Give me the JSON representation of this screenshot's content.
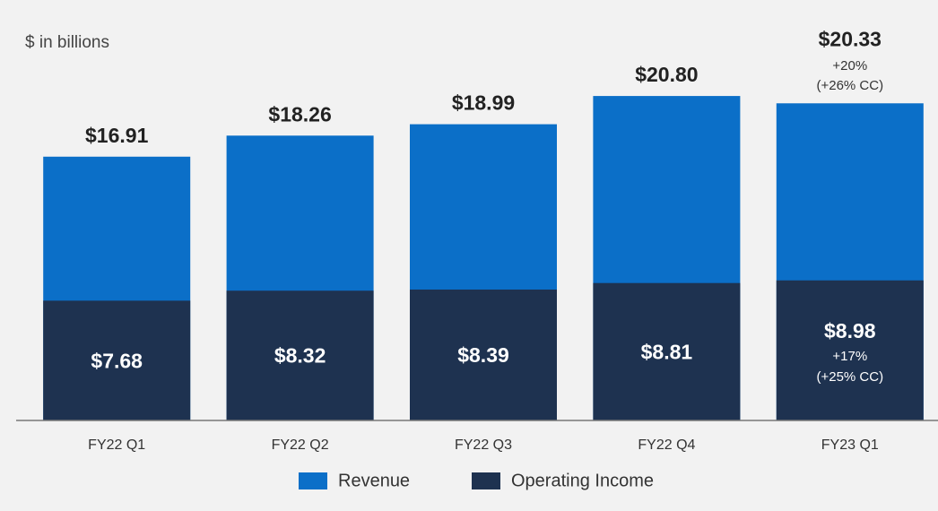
{
  "chart_data": {
    "type": "overlap_bar",
    "subtitle": "$ in billions",
    "categories": [
      "FY22 Q1",
      "FY22 Q2",
      "FY22 Q3",
      "FY22 Q4",
      "FY23 Q1"
    ],
    "series": [
      {
        "name": "Revenue",
        "color": "#0b6fc8",
        "values": [
          16.91,
          18.26,
          18.99,
          20.8,
          20.33
        ],
        "value_labels": [
          "$16.91",
          "$18.26",
          "$18.99",
          "$20.80",
          "$20.33"
        ],
        "growth_labels": [
          null,
          null,
          null,
          null,
          "+20%"
        ],
        "cc_growth_labels": [
          null,
          null,
          null,
          null,
          "(+26% CC)"
        ]
      },
      {
        "name": "Operating Income",
        "color": "#1e3250",
        "values": [
          7.68,
          8.32,
          8.39,
          8.81,
          8.98
        ],
        "value_labels": [
          "$7.68",
          "$8.32",
          "$8.39",
          "$8.81",
          "$8.98"
        ],
        "growth_labels": [
          null,
          null,
          null,
          null,
          "+17%"
        ],
        "cc_growth_labels": [
          null,
          null,
          null,
          null,
          "(+25% CC)"
        ]
      }
    ]
  }
}
